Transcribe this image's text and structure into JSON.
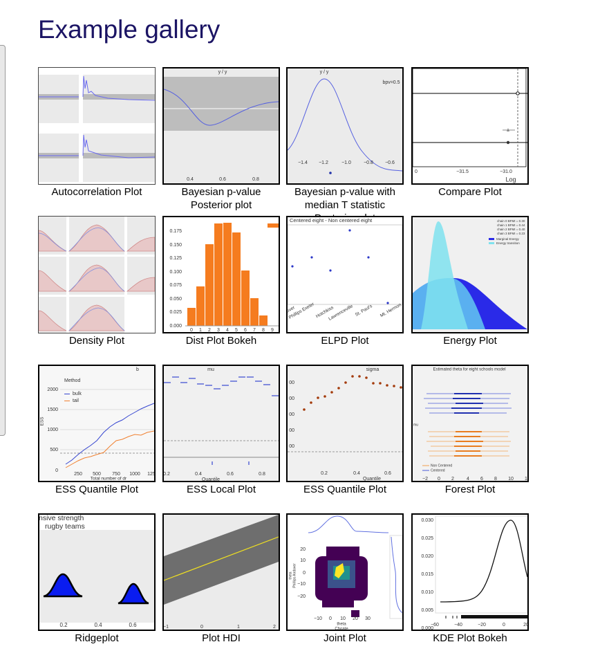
{
  "title": "Example gallery",
  "items": [
    {
      "caption": "Autocorrelation Plot"
    },
    {
      "caption": "Bayesian p-value Posterior plot",
      "texts": [
        "y / y",
        "0.4",
        "0.6",
        "0.8"
      ]
    },
    {
      "caption": "Bayesian p-value with median T statistic Posterior plot",
      "texts": [
        "y / y",
        "bpv=0.5",
        "−1.4",
        "−1.2",
        "−1.0",
        "−0.8",
        "−0.6"
      ]
    },
    {
      "caption": "Compare Plot",
      "texts": [
        "0",
        "−31.5",
        "−31.0",
        "Log"
      ]
    },
    {
      "caption": "Density Plot"
    },
    {
      "caption": "Dist Plot Bokeh",
      "texts": [
        "0.175",
        "0.150",
        "0.125",
        "0.100",
        "0.075",
        "0.050",
        "0.025",
        "0.000",
        "0",
        "1",
        "2",
        "3",
        "4",
        "5",
        "6",
        "7",
        "8",
        "9"
      ]
    },
    {
      "caption": "ELPD Plot",
      "texts": [
        "Centered eight - Non centered eight",
        "s Andover",
        "Phillips Exeter",
        "Hotchkiss",
        "Lawrenceville",
        "St. Paul's",
        "Mt. Hermon"
      ]
    },
    {
      "caption": "Energy Plot",
      "texts": [
        "chain 0 BFMI = 0.30",
        "chain 1 BFMI = 0.44",
        "chain 2 BFMI = 0.40",
        "chain 3 BFMI = 0.23",
        "Marginal Energy",
        "Energy transition"
      ]
    },
    {
      "caption": "ESS Quantile Plot",
      "texts": [
        "b",
        "Method",
        "bulk",
        "tail",
        "2000",
        "1500",
        "1000",
        "500",
        "0",
        "250",
        "500",
        "750",
        "1000",
        "125",
        "Total number of dr",
        "ESS"
      ]
    },
    {
      "caption": "ESS Local Plot",
      "texts": [
        "mu",
        "0.2",
        "0.4",
        "0.6",
        "0.8",
        "Quantile"
      ]
    },
    {
      "caption": "ESS Quantile Plot",
      "texts": [
        "sigma",
        "00",
        "00",
        "00",
        "00",
        "00",
        "0.2",
        "0.4",
        "0.6",
        "Quantile"
      ]
    },
    {
      "caption": "Forest Plot",
      "texts": [
        "Estimated theta for eight schools model",
        "mu",
        "Non Centered",
        "Centered",
        "−2",
        "0",
        "2",
        "4",
        "6",
        "8",
        "10",
        "1"
      ]
    },
    {
      "caption": "Ridgeplot",
      "texts": [
        "nsive strength",
        "rugby teams",
        "0.2",
        "0.4",
        "0.6"
      ]
    },
    {
      "caption": "Plot HDI",
      "texts": [
        "−1",
        "0",
        "1",
        "2"
      ]
    },
    {
      "caption": "Joint Plot",
      "texts": [
        "20",
        "10",
        "0",
        "−10",
        "−20",
        "−10",
        "0",
        "10",
        "20",
        "30",
        "theta",
        "Choate",
        "theta",
        "Phillips Andover"
      ]
    },
    {
      "caption": "KDE Plot Bokeh",
      "texts": [
        "0.030",
        "0.025",
        "0.020",
        "0.015",
        "0.010",
        "0.005",
        "0.000",
        "−60",
        "−40",
        "−20",
        "0",
        "20"
      ]
    }
  ]
}
